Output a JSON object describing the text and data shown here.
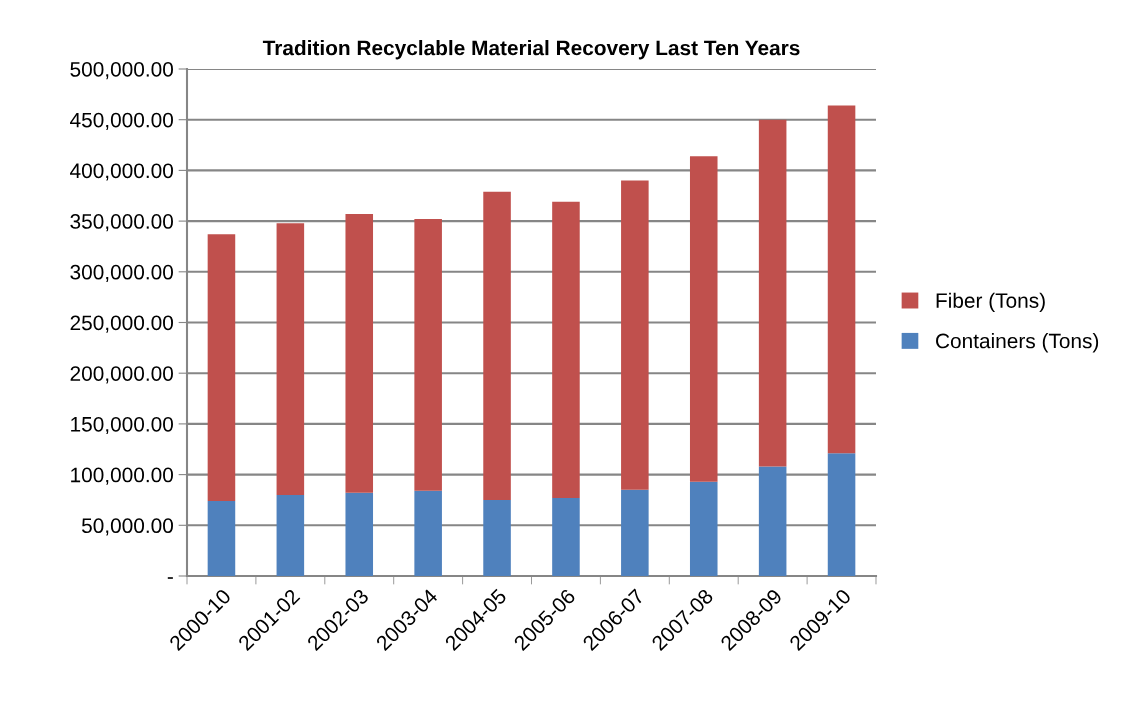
{
  "chart_data": {
    "type": "bar",
    "stacked": true,
    "title": "Tradition Recyclable Material Recovery Last Ten Years",
    "categories": [
      "2000-10",
      "2001-02",
      "2002-03",
      "2003-04",
      "2004-05",
      "2005-06",
      "2006-07",
      "2007-08",
      "2008-09",
      "2009-10"
    ],
    "series": [
      {
        "name": "Containers (Tons)",
        "color": "#4f81bd",
        "values": [
          74000,
          80000,
          82000,
          84000,
          75000,
          77000,
          85000,
          93000,
          108000,
          121000
        ]
      },
      {
        "name": "Fiber (Tons)",
        "color": "#c0504d",
        "values": [
          263000,
          268000,
          275000,
          268000,
          304000,
          292000,
          305000,
          321000,
          342000,
          343000
        ]
      }
    ],
    "ylim": [
      0,
      500000
    ],
    "yticks": [
      {
        "value": 0,
        "label": "-"
      },
      {
        "value": 50000,
        "label": "50,000.00"
      },
      {
        "value": 100000,
        "label": "100,000.00"
      },
      {
        "value": 150000,
        "label": "150,000.00"
      },
      {
        "value": 200000,
        "label": "200,000.00"
      },
      {
        "value": 250000,
        "label": "250,000.00"
      },
      {
        "value": 300000,
        "label": "300,000.00"
      },
      {
        "value": 350000,
        "label": "350,000.00"
      },
      {
        "value": 400000,
        "label": "400,000.00"
      },
      {
        "value": 450000,
        "label": "450,000.00"
      },
      {
        "value": 500000,
        "label": "500,000.00"
      }
    ],
    "grid": "y",
    "legend": "right"
  }
}
